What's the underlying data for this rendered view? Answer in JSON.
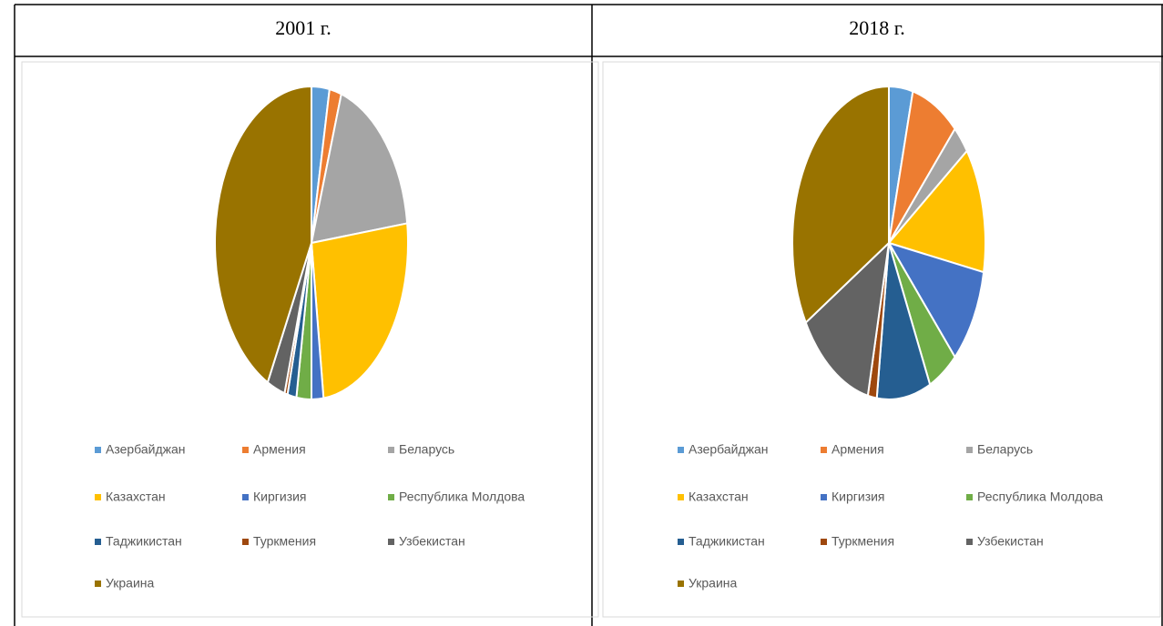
{
  "chart_data": [
    {
      "type": "pie",
      "title": "2001 г.",
      "categories": [
        "Азербайджан",
        "Армения",
        "Беларусь",
        "Казахстан",
        "Киргизия",
        "Республика Молдова",
        "Таджикистан",
        "Туркмения",
        "Узбекистан",
        "Украина"
      ],
      "values": [
        3,
        2,
        18,
        25,
        2,
        2.5,
        1.5,
        0.5,
        3,
        42.5
      ],
      "colors": [
        "#5b9bd5",
        "#ed7d31",
        "#a5a5a5",
        "#ffc000",
        "#4472c4",
        "#70ad47",
        "#255e91",
        "#9e480e",
        "#636363",
        "#997300"
      ]
    },
    {
      "type": "pie",
      "title": "2018 г.",
      "categories": [
        "Азербайджан",
        "Армения",
        "Беларусь",
        "Казахстан",
        "Киргизия",
        "Республика Молдова",
        "Таджикистан",
        "Туркмения",
        "Узбекистан",
        "Украина"
      ],
      "values": [
        4,
        8,
        3,
        13,
        10,
        5,
        9,
        1.5,
        13,
        33.5
      ],
      "colors": [
        "#5b9bd5",
        "#ed7d31",
        "#a5a5a5",
        "#ffc000",
        "#4472c4",
        "#70ad47",
        "#255e91",
        "#9e480e",
        "#636363",
        "#997300"
      ]
    }
  ]
}
